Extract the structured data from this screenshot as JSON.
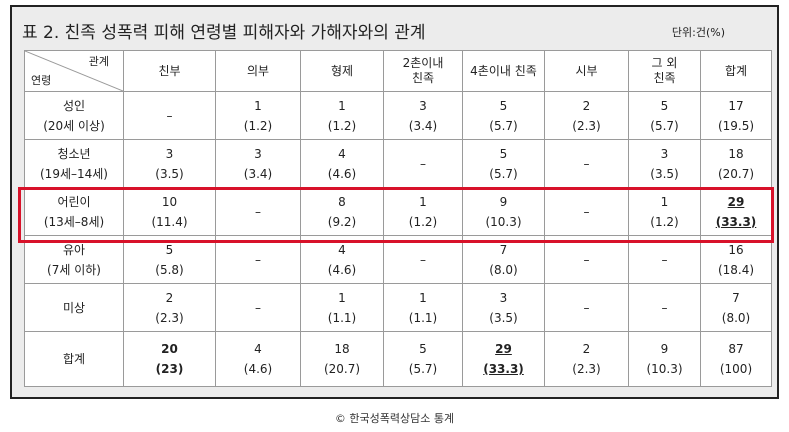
{
  "header": {
    "title": "표 2. 친족 성폭력 피해 연령별 피해자와 가해자와의 관계",
    "unit": "단위:건(%)"
  },
  "table": {
    "corner": {
      "top": "관계",
      "bottom": "연령"
    },
    "columns": [
      [
        "친부"
      ],
      [
        "의부"
      ],
      [
        "형제"
      ],
      [
        "2촌이내",
        "친족"
      ],
      [
        "4촌이내 친족"
      ],
      [
        "시부"
      ],
      [
        "그 외",
        "친족"
      ],
      [
        "합계"
      ]
    ],
    "rows": [
      {
        "label": [
          "성인",
          "(20세 이상)"
        ],
        "cells": [
          [
            "–"
          ],
          [
            "1",
            "(1.2)"
          ],
          [
            "1",
            "(1.2)"
          ],
          [
            "3",
            "(3.4)"
          ],
          [
            "5",
            "(5.7)"
          ],
          [
            "2",
            "(2.3)"
          ],
          [
            "5",
            "(5.7)"
          ],
          [
            "17",
            "(19.5)"
          ]
        ]
      },
      {
        "label": [
          "청소년",
          "(19세–14세)"
        ],
        "cells": [
          [
            "3",
            "(3.5)"
          ],
          [
            "3",
            "(3.4)"
          ],
          [
            "4",
            "(4.6)"
          ],
          [
            "–"
          ],
          [
            "5",
            "(5.7)"
          ],
          [
            "–"
          ],
          [
            "3",
            "(3.5)"
          ],
          [
            "18",
            "(20.7)"
          ]
        ]
      },
      {
        "label": [
          "어린이",
          "(13세–8세)"
        ],
        "cells": [
          [
            "10",
            "(11.4)"
          ],
          [
            "–"
          ],
          [
            "8",
            "(9.2)"
          ],
          [
            "1",
            "(1.2)"
          ],
          [
            "9",
            "(10.3)"
          ],
          [
            "–"
          ],
          [
            "1",
            "(1.2)"
          ],
          [
            "29",
            "(33.3)"
          ]
        ]
      },
      {
        "label": [
          "유아",
          "(7세 이하)"
        ],
        "cells": [
          [
            "5",
            "(5.8)"
          ],
          [
            "–"
          ],
          [
            "4",
            "(4.6)"
          ],
          [
            "–"
          ],
          [
            "7",
            "(8.0)"
          ],
          [
            "–"
          ],
          [
            "–"
          ],
          [
            "16",
            "(18.4)"
          ]
        ]
      },
      {
        "label": [
          "미상"
        ],
        "cells": [
          [
            "2",
            "(2.3)"
          ],
          [
            "–"
          ],
          [
            "1",
            "(1.1)"
          ],
          [
            "1",
            "(1.1)"
          ],
          [
            "3",
            "(3.5)"
          ],
          [
            "–"
          ],
          [
            "–"
          ],
          [
            "7",
            "(8.0)"
          ]
        ]
      },
      {
        "label": [
          "합계"
        ],
        "cells": [
          [
            "20",
            "(23)"
          ],
          [
            "4",
            "(4.6)"
          ],
          [
            "18",
            "(20.7)"
          ],
          [
            "5",
            "(5.7)"
          ],
          [
            "29",
            "(33.3)"
          ],
          [
            "2",
            "(2.3)"
          ],
          [
            "9",
            "(10.3)"
          ],
          [
            "87",
            "(100)"
          ]
        ]
      }
    ]
  },
  "caption": "© 한국성폭력상담소 통계"
}
